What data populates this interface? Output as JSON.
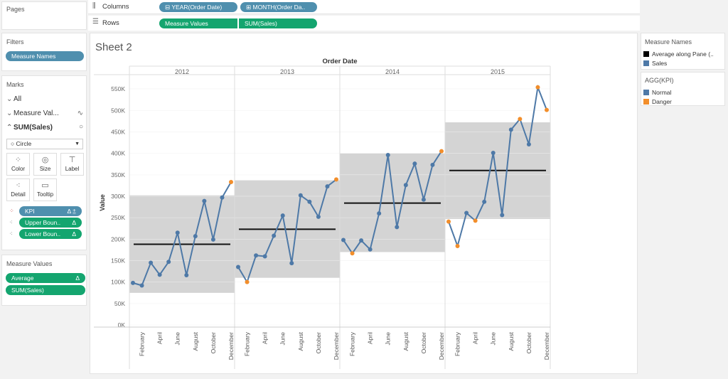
{
  "shelves": {
    "columns_label": "Columns",
    "rows_label": "Rows",
    "columns": [
      "YEAR(Order Date)",
      "MONTH(Order Da.."
    ],
    "rows": [
      "Measure Values",
      "SUM(Sales)"
    ]
  },
  "pages": {
    "title": "Pages"
  },
  "filters": {
    "title": "Filters",
    "items": [
      "Measure Names"
    ]
  },
  "marks": {
    "title": "Marks",
    "all": "All",
    "measure_values": "Measure Val...",
    "sum_sales": "SUM(Sales)",
    "mark_type": "Circle",
    "cards": [
      "Color",
      "Size",
      "Label",
      "Detail",
      "Tooltip"
    ],
    "pills": [
      "KPI",
      "Upper Boun..",
      "Lower Boun.."
    ]
  },
  "measure_values_card": {
    "title": "Measure Values",
    "items": [
      "Average",
      "SUM(Sales)"
    ]
  },
  "legend_names": {
    "title": "Measure Names",
    "items": [
      {
        "label": "Average along Pane (..",
        "color": "#000000"
      },
      {
        "label": "Sales",
        "color": "#4e79a7"
      }
    ]
  },
  "legend_kpi": {
    "title": "AGG(KPI)",
    "items": [
      {
        "label": "Normal",
        "color": "#4e79a7"
      },
      {
        "label": "Danger",
        "color": "#f28e2b"
      }
    ]
  },
  "sheet": {
    "title": "Sheet 2",
    "column_header": "Order Date"
  },
  "chart_data": {
    "type": "line",
    "title": "Sheet 2",
    "xlabel": "Order Date",
    "ylabel": "Value",
    "ylim": [
      0,
      580000
    ],
    "yticks": [
      0,
      50000,
      100000,
      150000,
      200000,
      250000,
      300000,
      350000,
      400000,
      450000,
      500000,
      550000
    ],
    "ytick_labels": [
      "0K",
      "50K",
      "100K",
      "150K",
      "200K",
      "250K",
      "300K",
      "350K",
      "400K",
      "450K",
      "500K",
      "550K"
    ],
    "month_tick_labels": [
      "February",
      "April",
      "June",
      "August",
      "October",
      "December"
    ],
    "panes": [
      {
        "year": "2012",
        "average": 188000,
        "band": [
          75000,
          302000
        ],
        "sales": [
          98000,
          92000,
          145000,
          117000,
          147000,
          215000,
          116000,
          207000,
          289000,
          199000,
          297000,
          333000
        ],
        "kpi": [
          "Normal",
          "Normal",
          "Normal",
          "Normal",
          "Normal",
          "Normal",
          "Normal",
          "Normal",
          "Normal",
          "Normal",
          "Normal",
          "Danger"
        ]
      },
      {
        "year": "2013",
        "average": 223000,
        "band": [
          110000,
          337000
        ],
        "sales": [
          135000,
          100000,
          162000,
          160000,
          208000,
          255000,
          144000,
          302000,
          287000,
          252000,
          323000,
          339000
        ],
        "kpi": [
          "Normal",
          "Danger",
          "Normal",
          "Normal",
          "Normal",
          "Normal",
          "Normal",
          "Normal",
          "Normal",
          "Normal",
          "Normal",
          "Danger"
        ]
      },
      {
        "year": "2014",
        "average": 284000,
        "band": [
          170000,
          400000
        ],
        "sales": [
          198000,
          167000,
          197000,
          176000,
          260000,
          396000,
          228000,
          326000,
          376000,
          292000,
          373000,
          405000
        ],
        "kpi": [
          "Normal",
          "Danger",
          "Normal",
          "Normal",
          "Normal",
          "Normal",
          "Normal",
          "Normal",
          "Normal",
          "Normal",
          "Normal",
          "Danger"
        ]
      },
      {
        "year": "2015",
        "average": 360000,
        "band": [
          247000,
          472000
        ],
        "sales": [
          241000,
          184000,
          261000,
          243000,
          287000,
          401000,
          256000,
          455000,
          480000,
          421000,
          554000,
          501000
        ],
        "kpi": [
          "Danger",
          "Danger",
          "Normal",
          "Danger",
          "Normal",
          "Normal",
          "Normal",
          "Normal",
          "Danger",
          "Normal",
          "Danger",
          "Danger"
        ]
      }
    ]
  },
  "colors": {
    "sales": "#4e79a7",
    "danger": "#f28e2b",
    "normal": "#4e79a7",
    "average": "#111111",
    "band": "#d4d4d4"
  }
}
